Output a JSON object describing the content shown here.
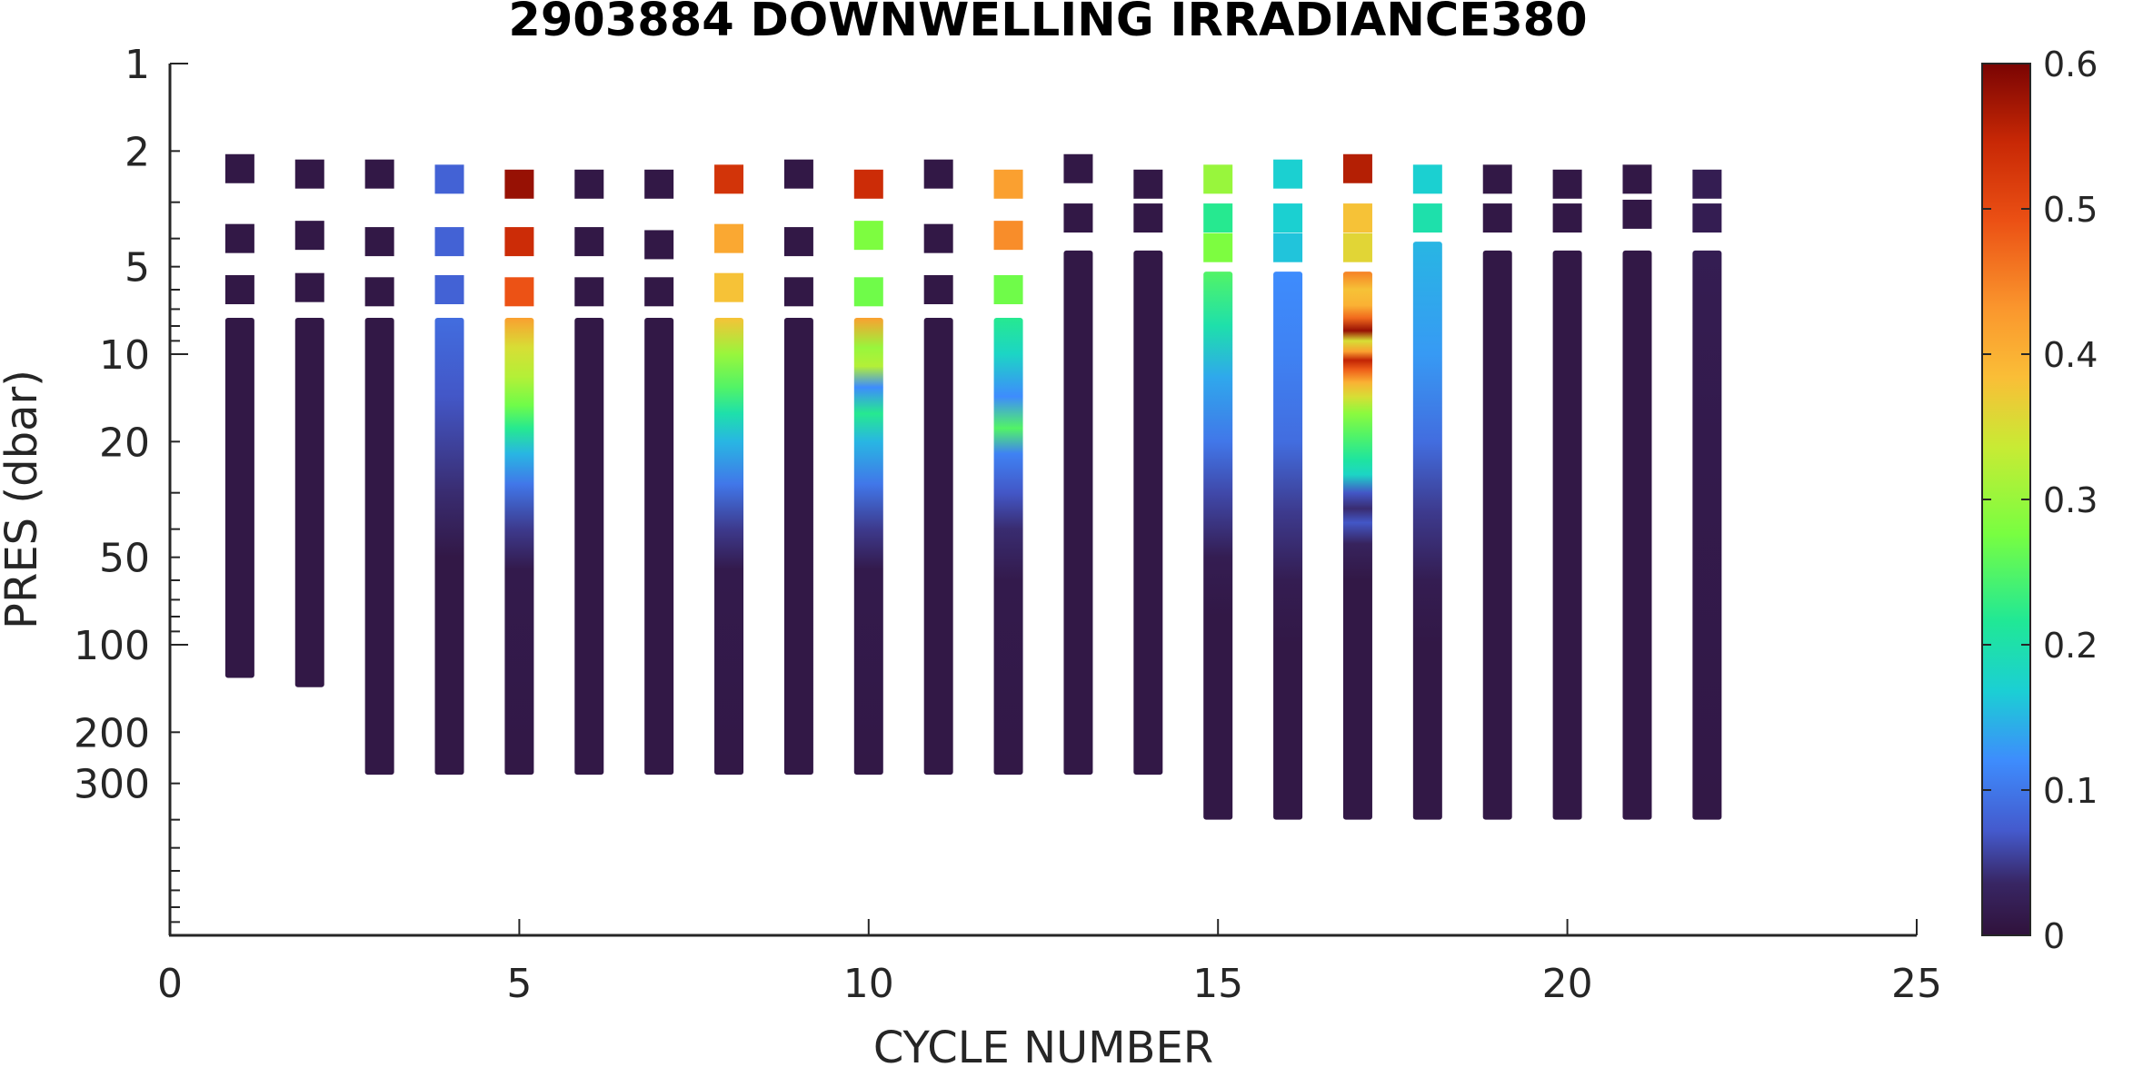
{
  "chart_data": {
    "type": "heatmap",
    "title": "2903884  DOWNWELLING IRRADIANCE380",
    "xlabel": "CYCLE NUMBER",
    "ylabel": "PRES (dbar)",
    "xlim": [
      0,
      25
    ],
    "ylim": [
      1,
      1000
    ],
    "y_scale": "log",
    "y_reversed": true,
    "x_ticks": [
      0,
      5,
      10,
      15,
      20,
      25
    ],
    "y_ticks": [
      1,
      2,
      5,
      10,
      20,
      50,
      100,
      200,
      300
    ],
    "grid": false,
    "colormap": "turbo",
    "colorbar": {
      "range": [
        0,
        0.6
      ],
      "ticks": [
        0,
        0.1,
        0.2,
        0.3,
        0.4,
        0.5,
        0.6
      ],
      "tick_labels": [
        "0",
        "0.1",
        "0.2",
        "0.3",
        "0.4",
        "0.5",
        "0.6"
      ],
      "placement": "right"
    },
    "cycles": [
      {
        "cycle": 1,
        "samples": [
          [
            2.3,
            0.01
          ],
          [
            4.0,
            0.01
          ],
          [
            6.0,
            0.01
          ]
        ],
        "profile": {
          "start": 7.5,
          "end": 130,
          "stops": [
            [
              7.5,
              0.01
            ],
            [
              130,
              0.01
            ]
          ]
        }
      },
      {
        "cycle": 2,
        "samples": [
          [
            2.4,
            0.01
          ],
          [
            3.9,
            0.01
          ],
          [
            5.9,
            0.01
          ]
        ],
        "profile": {
          "start": 7.5,
          "end": 140,
          "stops": [
            [
              7.5,
              0.01
            ],
            [
              140,
              0.01
            ]
          ]
        }
      },
      {
        "cycle": 3,
        "samples": [
          [
            2.4,
            0.01
          ],
          [
            4.1,
            0.01
          ],
          [
            6.1,
            0.01
          ]
        ],
        "profile": {
          "start": 7.5,
          "end": 280,
          "stops": [
            [
              7.5,
              0.01
            ],
            [
              280,
              0.01
            ]
          ]
        }
      },
      {
        "cycle": 4,
        "samples": [
          [
            2.5,
            0.08
          ],
          [
            4.1,
            0.08
          ],
          [
            6.0,
            0.08
          ]
        ],
        "profile": {
          "start": 7.5,
          "end": 280,
          "stops": [
            [
              7.5,
              0.09
            ],
            [
              14,
              0.07
            ],
            [
              30,
              0.04
            ],
            [
              50,
              0.01
            ],
            [
              280,
              0.01
            ]
          ]
        }
      },
      {
        "cycle": 5,
        "samples": [
          [
            2.6,
            0.58
          ],
          [
            4.1,
            0.54
          ],
          [
            6.1,
            0.49
          ]
        ],
        "profile": {
          "start": 7.5,
          "end": 280,
          "stops": [
            [
              7.5,
              0.42
            ],
            [
              9.5,
              0.35
            ],
            [
              12,
              0.32
            ],
            [
              15,
              0.27
            ],
            [
              18,
              0.22
            ],
            [
              22,
              0.15
            ],
            [
              28,
              0.1
            ],
            [
              40,
              0.05
            ],
            [
              55,
              0.015
            ],
            [
              280,
              0.01
            ]
          ]
        }
      },
      {
        "cycle": 6,
        "samples": [
          [
            2.6,
            0.01
          ],
          [
            4.1,
            0.01
          ],
          [
            6.1,
            0.01
          ]
        ],
        "profile": {
          "start": 7.5,
          "end": 280,
          "stops": [
            [
              7.5,
              0.01
            ],
            [
              280,
              0.01
            ]
          ]
        }
      },
      {
        "cycle": 7,
        "samples": [
          [
            2.6,
            0.01
          ],
          [
            4.2,
            0.01
          ],
          [
            6.1,
            0.01
          ]
        ],
        "profile": {
          "start": 7.5,
          "end": 280,
          "stops": [
            [
              7.5,
              0.01
            ],
            [
              280,
              0.01
            ]
          ]
        }
      },
      {
        "cycle": 8,
        "samples": [
          [
            2.5,
            0.53
          ],
          [
            4.0,
            0.41
          ],
          [
            5.9,
            0.38
          ]
        ],
        "profile": {
          "start": 7.5,
          "end": 280,
          "stops": [
            [
              7.5,
              0.38
            ],
            [
              10,
              0.3
            ],
            [
              13,
              0.25
            ],
            [
              16,
              0.2
            ],
            [
              20,
              0.15
            ],
            [
              28,
              0.1
            ],
            [
              40,
              0.05
            ],
            [
              55,
              0.015
            ],
            [
              280,
              0.01
            ]
          ]
        }
      },
      {
        "cycle": 9,
        "samples": [
          [
            2.4,
            0.01
          ],
          [
            4.1,
            0.01
          ],
          [
            6.1,
            0.01
          ]
        ],
        "profile": {
          "start": 7.5,
          "end": 280,
          "stops": [
            [
              7.5,
              0.01
            ],
            [
              280,
              0.01
            ]
          ]
        }
      },
      {
        "cycle": 10,
        "samples": [
          [
            2.6,
            0.54
          ],
          [
            3.9,
            0.28
          ],
          [
            6.1,
            0.27
          ]
        ],
        "profile": {
          "start": 7.5,
          "end": 280,
          "stops": [
            [
              7.5,
              0.42
            ],
            [
              9.5,
              0.3
            ],
            [
              11,
              0.32
            ],
            [
              13,
              0.12
            ],
            [
              16,
              0.22
            ],
            [
              20,
              0.15
            ],
            [
              28,
              0.1
            ],
            [
              40,
              0.05
            ],
            [
              55,
              0.015
            ],
            [
              280,
              0.01
            ]
          ]
        }
      },
      {
        "cycle": 11,
        "samples": [
          [
            2.4,
            0.01
          ],
          [
            4.0,
            0.01
          ],
          [
            6.0,
            0.01
          ]
        ],
        "profile": {
          "start": 7.5,
          "end": 280,
          "stops": [
            [
              7.5,
              0.01
            ],
            [
              280,
              0.01
            ]
          ]
        }
      },
      {
        "cycle": 12,
        "samples": [
          [
            2.6,
            0.42
          ],
          [
            3.9,
            0.44
          ],
          [
            6.0,
            0.27
          ]
        ],
        "profile": {
          "start": 7.5,
          "end": 280,
          "stops": [
            [
              7.5,
              0.22
            ],
            [
              10,
              0.18
            ],
            [
              14,
              0.12
            ],
            [
              18,
              0.25
            ],
            [
              22,
              0.11
            ],
            [
              30,
              0.07
            ],
            [
              40,
              0.04
            ],
            [
              60,
              0.015
            ],
            [
              280,
              0.01
            ]
          ]
        }
      },
      {
        "cycle": 13,
        "samples": [
          [
            2.3,
            0.01
          ],
          [
            3.4,
            0.01
          ]
        ],
        "profile": {
          "start": 4.4,
          "end": 280,
          "stops": [
            [
              4.4,
              0.01
            ],
            [
              280,
              0.01
            ]
          ]
        }
      },
      {
        "cycle": 14,
        "samples": [
          [
            2.6,
            0.01
          ],
          [
            3.4,
            0.01
          ]
        ],
        "profile": {
          "start": 4.4,
          "end": 280,
          "stops": [
            [
              4.4,
              0.01
            ],
            [
              280,
              0.01
            ]
          ]
        }
      },
      {
        "cycle": 15,
        "samples": [
          [
            2.5,
            0.3
          ],
          [
            3.4,
            0.22
          ],
          [
            4.3,
            0.28
          ]
        ],
        "profile": {
          "start": 5.2,
          "end": 400,
          "stops": [
            [
              5.2,
              0.25
            ],
            [
              8,
              0.2
            ],
            [
              12,
              0.14
            ],
            [
              20,
              0.1
            ],
            [
              30,
              0.06
            ],
            [
              50,
              0.02
            ],
            [
              80,
              0.01
            ],
            [
              400,
              0.01
            ]
          ]
        }
      },
      {
        "cycle": 16,
        "samples": [
          [
            2.4,
            0.17
          ],
          [
            3.4,
            0.17
          ],
          [
            4.3,
            0.16
          ]
        ],
        "profile": {
          "start": 5.2,
          "end": 400,
          "stops": [
            [
              5.2,
              0.12
            ],
            [
              10,
              0.11
            ],
            [
              20,
              0.09
            ],
            [
              35,
              0.05
            ],
            [
              60,
              0.02
            ],
            [
              100,
              0.01
            ],
            [
              400,
              0.01
            ]
          ]
        }
      },
      {
        "cycle": 17,
        "samples": [
          [
            2.3,
            0.56
          ],
          [
            3.4,
            0.38
          ],
          [
            4.3,
            0.36
          ]
        ],
        "profile": {
          "start": 5.2,
          "end": 400,
          "stops": [
            [
              5.2,
              0.45
            ],
            [
              6.0,
              0.38
            ],
            [
              6.8,
              0.4
            ],
            [
              7.5,
              0.47
            ],
            [
              8.3,
              0.58
            ],
            [
              9.0,
              0.35
            ],
            [
              9.8,
              0.42
            ],
            [
              10.5,
              0.55
            ],
            [
              11.3,
              0.48
            ],
            [
              12.5,
              0.4
            ],
            [
              14,
              0.35
            ],
            [
              16,
              0.29
            ],
            [
              19,
              0.25
            ],
            [
              23,
              0.21
            ],
            [
              26,
              0.18
            ],
            [
              30,
              0.07
            ],
            [
              34,
              0.04
            ],
            [
              38,
              0.07
            ],
            [
              45,
              0.03
            ],
            [
              60,
              0.01
            ],
            [
              400,
              0.01
            ]
          ]
        }
      },
      {
        "cycle": 18,
        "samples": [
          [
            2.5,
            0.17
          ],
          [
            3.4,
            0.2
          ]
        ],
        "profile": {
          "start": 4.1,
          "end": 400,
          "stops": [
            [
              4.1,
              0.15
            ],
            [
              10,
              0.13
            ],
            [
              20,
              0.09
            ],
            [
              35,
              0.05
            ],
            [
              60,
              0.02
            ],
            [
              100,
              0.01
            ],
            [
              400,
              0.01
            ]
          ]
        }
      },
      {
        "cycle": 19,
        "samples": [
          [
            2.5,
            0.01
          ],
          [
            3.4,
            0.01
          ]
        ],
        "profile": {
          "start": 4.4,
          "end": 400,
          "stops": [
            [
              4.4,
              0.01
            ],
            [
              400,
              0.01
            ]
          ]
        }
      },
      {
        "cycle": 20,
        "samples": [
          [
            2.6,
            0.01
          ],
          [
            3.4,
            0.01
          ]
        ],
        "profile": {
          "start": 4.4,
          "end": 400,
          "stops": [
            [
              4.4,
              0.01
            ],
            [
              400,
              0.01
            ]
          ]
        }
      },
      {
        "cycle": 21,
        "samples": [
          [
            2.5,
            0.01
          ],
          [
            3.3,
            0.01
          ]
        ],
        "profile": {
          "start": 4.4,
          "end": 400,
          "stops": [
            [
              4.4,
              0.01
            ],
            [
              400,
              0.01
            ]
          ]
        }
      },
      {
        "cycle": 22,
        "samples": [
          [
            2.6,
            0.02
          ],
          [
            3.4,
            0.02
          ]
        ],
        "profile": {
          "start": 4.4,
          "end": 400,
          "stops": [
            [
              4.4,
              0.02
            ],
            [
              20,
              0.015
            ],
            [
              400,
              0.01
            ]
          ]
        }
      }
    ]
  }
}
